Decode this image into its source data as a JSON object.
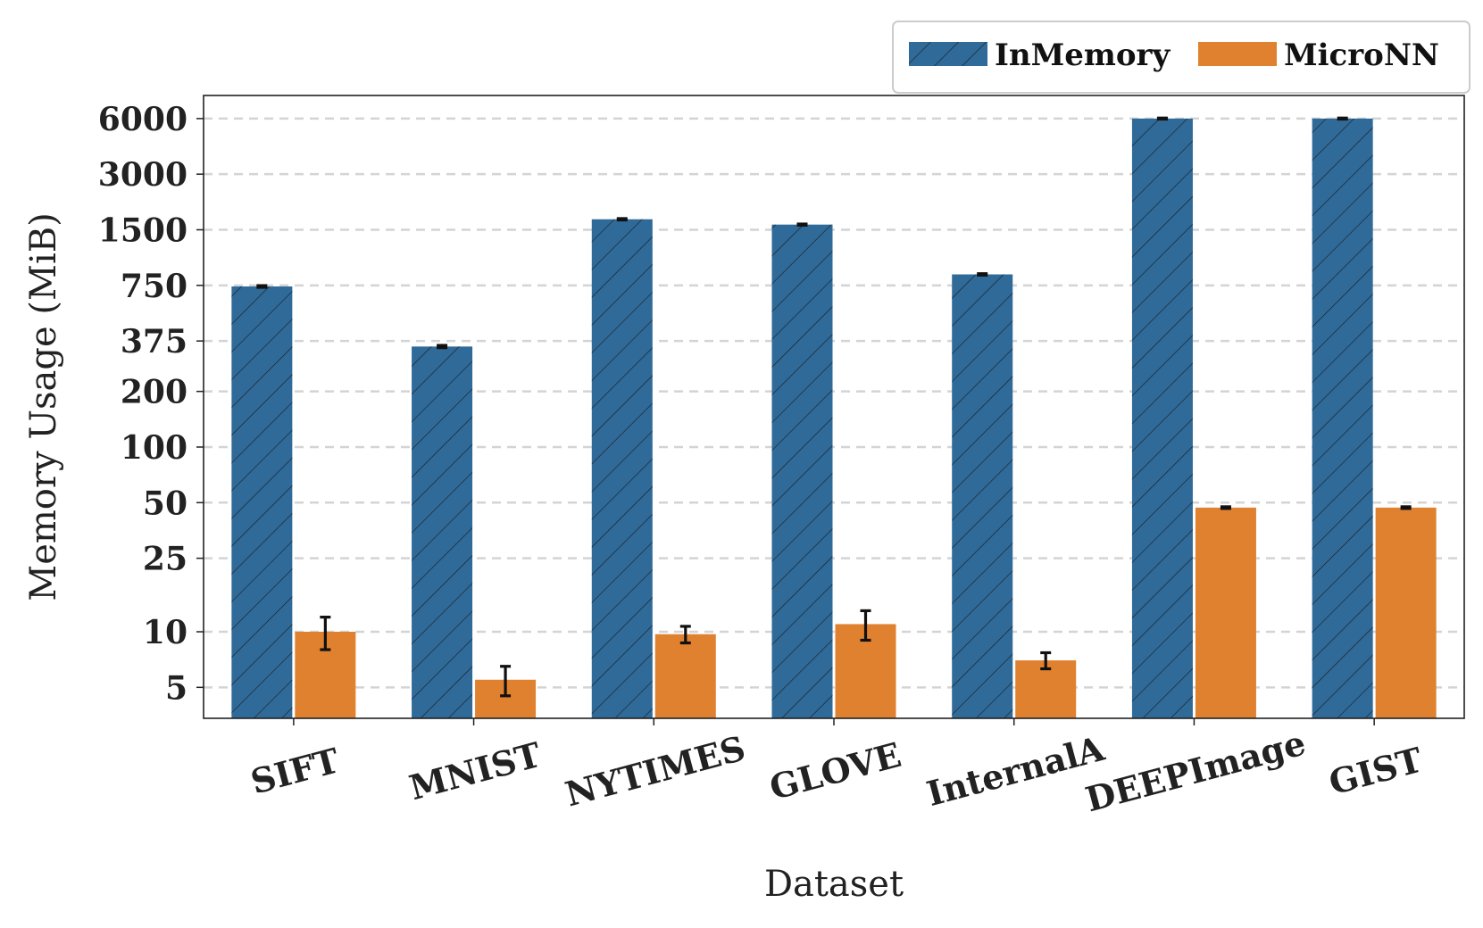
{
  "chart_data": {
    "type": "bar",
    "title": "",
    "xlabel": "Dataset",
    "ylabel": "Memory Usage (MiB)",
    "yscale": "log",
    "ylim": [
      3.4,
      8000
    ],
    "yticks": [
      5,
      10,
      25,
      50,
      100,
      200,
      375,
      750,
      1500,
      3000,
      6000
    ],
    "ytick_labels": [
      "5",
      "10",
      "25",
      "50",
      "100",
      "200",
      "375",
      "750",
      "1500",
      "3000",
      "6000"
    ],
    "grid": "horizontal-dashed",
    "legend_position": "top-right",
    "categories": [
      "SIFT",
      "MNIST",
      "NYTIMES",
      "GLOVE",
      "InternalA",
      "DEEPImage",
      "GIST"
    ],
    "series": [
      {
        "name": "InMemory",
        "color": "#2f6a99",
        "hatch": "diagonal",
        "values": [
          740,
          350,
          1710,
          1600,
          860,
          6000,
          6000
        ],
        "error": [
          8,
          5,
          15,
          12,
          8,
          40,
          40
        ]
      },
      {
        "name": "MicroNN",
        "color": "#e0812f",
        "hatch": "none",
        "values": [
          10,
          5.5,
          9.7,
          11,
          7,
          47,
          47
        ],
        "error": [
          2,
          1,
          1,
          2,
          0.7,
          0.5,
          0.5
        ]
      }
    ]
  }
}
